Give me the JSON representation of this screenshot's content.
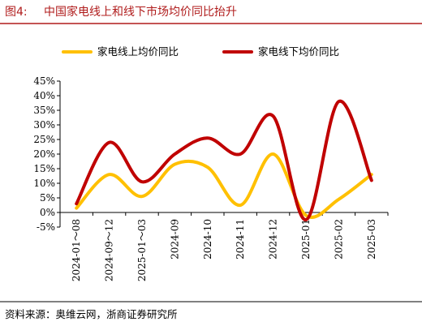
{
  "header": {
    "figure_label": "图4:",
    "title": "中国家电线上和线下市场均价同比抬升",
    "rule_color": "#b01c1c"
  },
  "footer": {
    "source": "资料来源：奥维云网，浙商证券研究所"
  },
  "chart_data": {
    "type": "line",
    "title": "中国家电线上和线下市场均价同比抬升",
    "categories": [
      "2024-01～08",
      "2024-09～12",
      "2025-01～03",
      "2024-09",
      "2024-10",
      "2024-11",
      "2024-12",
      "2025-01",
      "2025-02",
      "2025-03"
    ],
    "y_ticks": [
      "45%",
      "40%",
      "35%",
      "30%",
      "25%",
      "20%",
      "15%",
      "10%",
      "5%",
      "0%",
      "-5%"
    ],
    "ylim": [
      -5,
      45
    ],
    "y_unit": "%",
    "grid": false,
    "legend_position": "top",
    "series": [
      {
        "name": "家电线上均价同比",
        "color": "#ffc000",
        "values": [
          1.5,
          13,
          5.5,
          16.5,
          15.5,
          2.5,
          20,
          -1,
          4.5,
          13
        ]
      },
      {
        "name": "家电线下均价同比",
        "color": "#c00000",
        "values": [
          3,
          24,
          10.5,
          20,
          25.5,
          20,
          33,
          -2.5,
          38,
          11
        ]
      }
    ]
  }
}
